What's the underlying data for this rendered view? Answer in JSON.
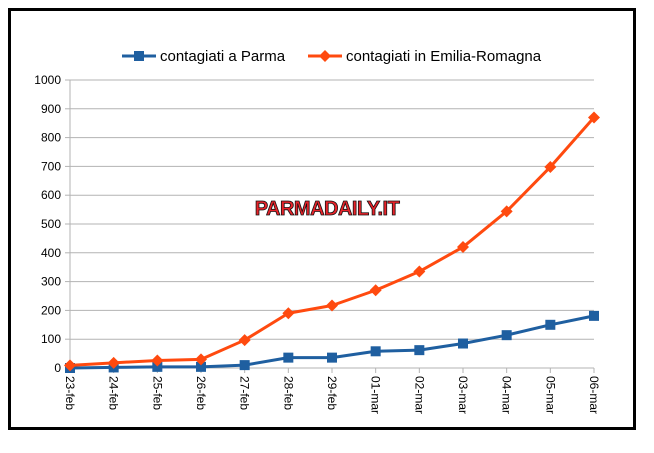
{
  "chart_data": {
    "type": "line",
    "categories": [
      "23-feb",
      "24-feb",
      "25-feb",
      "26-feb",
      "27-feb",
      "28-feb",
      "29-feb",
      "01-mar",
      "02-mar",
      "03-mar",
      "04-mar",
      "05-mar",
      "06-mar"
    ],
    "series": [
      {
        "name": "contagiati a Parma",
        "color": "#1f5fa0",
        "marker": "square",
        "values": [
          0,
          2,
          4,
          4,
          10,
          36,
          36,
          58,
          62,
          85,
          114,
          150,
          181
        ]
      },
      {
        "name": "contagiati in Emilia-Romagna",
        "color": "#ff4a0f",
        "marker": "diamond",
        "values": [
          9,
          18,
          26,
          30,
          97,
          190,
          217,
          270,
          335,
          420,
          544,
          698,
          870
        ]
      }
    ],
    "ylim": [
      0,
      1000
    ],
    "yticks": [
      0,
      100,
      200,
      300,
      400,
      500,
      600,
      700,
      800,
      900,
      1000
    ],
    "grid": "horizontal",
    "legend_position": "top",
    "watermark": "PARMADAILY.IT"
  }
}
